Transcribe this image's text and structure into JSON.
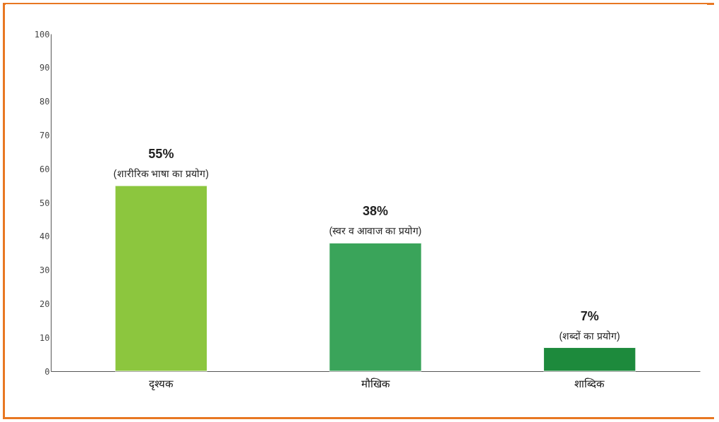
{
  "chart_data": {
    "type": "bar",
    "categories": [
      "दृश्यक",
      "मौखिक",
      "शाब्दिक"
    ],
    "values": [
      55,
      38,
      7
    ],
    "colors": [
      "#8cc63e",
      "#3aa45a",
      "#1d8a3c"
    ],
    "value_labels": [
      "55%",
      "38%",
      "7%"
    ],
    "annotations": [
      {
        "text": "(शारीरिक भाषा का प्रयोग)",
        "x": "दृश्यक",
        "y": 55
      },
      {
        "text": "(स्वर व आवाज का प्रयोग)",
        "x": "मौखिक",
        "y": 38
      },
      {
        "text": "(शब्दों का प्रयोग)",
        "x": "शाब्दिक",
        "y": 7
      }
    ],
    "ylim": [
      0,
      100
    ],
    "yticks": [
      0,
      10,
      20,
      30,
      40,
      50,
      60,
      70,
      80,
      90,
      100
    ],
    "grid": false
  }
}
